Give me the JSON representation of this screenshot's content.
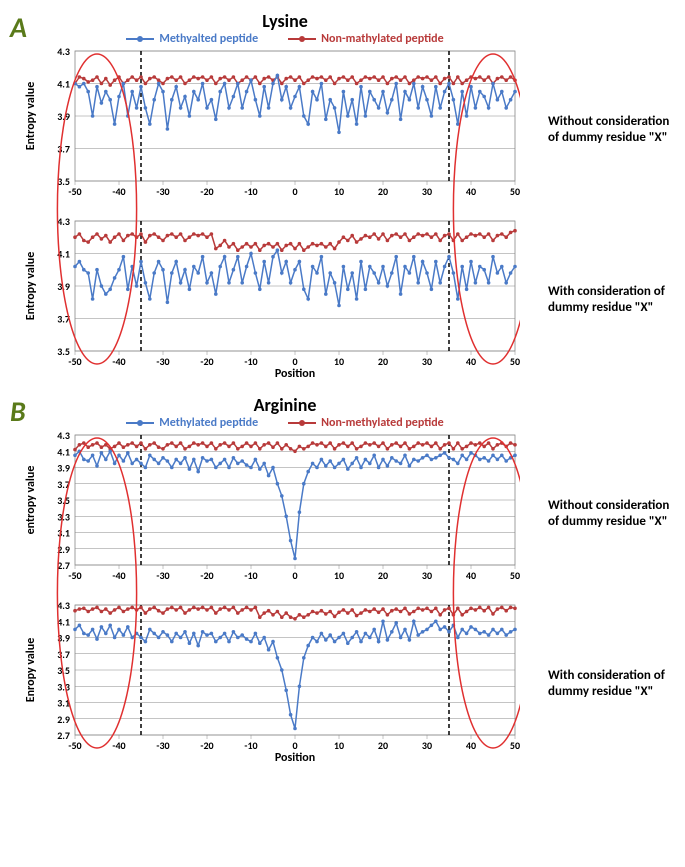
{
  "colors": {
    "methyl": "#4a7ac7",
    "nonmethyl": "#b83a3a",
    "panel_label": "#5a7a1a",
    "grid": "#888888",
    "text": "#000000",
    "ellipse": "#e03030",
    "dash": "#000000",
    "bg": "#ffffff"
  },
  "global": {
    "x_min": -50,
    "x_max": 50,
    "x_tick_step": 10,
    "x_label": "Position",
    "legend_methyl": "Methyalted peptide",
    "legend_nonmethyl": "Non-mathylated peptide",
    "legend_methyl_b": "Methylated peptide",
    "legend_nonmethyl_b": "Non-methylated peptide",
    "dash_positions": [
      -35,
      35
    ],
    "ellipse_centers": [
      -45,
      45
    ],
    "ellipse_rx": 9
  },
  "panels": [
    {
      "id": "A",
      "title": "Lysine",
      "y_min": 3.5,
      "y_max": 4.3,
      "y_tick_step": 0.2,
      "charts": [
        {
          "side_label": "Without consideration of dummy residue \"X\"",
          "y_axis_label": "Entropy value",
          "methyl": [
            4.1,
            4.08,
            4.1,
            4.05,
            3.9,
            4.08,
            3.98,
            4.05,
            4.0,
            3.85,
            4.02,
            4.1,
            3.9,
            4.05,
            3.95,
            4.08,
            3.95,
            3.85,
            4.0,
            4.1,
            4.05,
            3.82,
            4.0,
            4.08,
            3.95,
            4.02,
            3.9,
            4.05,
            4.0,
            4.1,
            3.95,
            4.0,
            3.88,
            4.05,
            4.1,
            3.95,
            4.02,
            4.1,
            3.95,
            4.05,
            4.12,
            4.0,
            3.9,
            4.08,
            3.95,
            4.1,
            4.15,
            4.0,
            4.08,
            3.95,
            4.02,
            4.08,
            3.9,
            3.85,
            4.05,
            4.0,
            4.1,
            3.88,
            4.0,
            3.95,
            3.8,
            4.05,
            3.9,
            4.0,
            3.85,
            4.08,
            3.9,
            4.05,
            4.0,
            3.95,
            4.05,
            3.92,
            4.0,
            4.1,
            3.88,
            4.05,
            4.0,
            4.1,
            3.95,
            4.08,
            4.0,
            3.9,
            4.08,
            3.95,
            4.05,
            4.1,
            4.0,
            3.85,
            4.05,
            3.9,
            4.08,
            3.95,
            4.05,
            4.02,
            3.95,
            4.1,
            4.0,
            4.05,
            3.95,
            4.0,
            4.05
          ],
          "nonmethyl": [
            4.1,
            4.14,
            4.13,
            4.11,
            4.12,
            4.14,
            4.1,
            4.13,
            4.09,
            4.12,
            4.14,
            4.1,
            4.12,
            4.14,
            4.12,
            4.14,
            4.1,
            4.13,
            4.14,
            4.12,
            4.1,
            4.13,
            4.14,
            4.12,
            4.14,
            4.1,
            4.12,
            4.14,
            4.13,
            4.14,
            4.12,
            4.14,
            4.1,
            4.13,
            4.14,
            4.12,
            4.14,
            4.1,
            4.12,
            4.14,
            4.12,
            4.14,
            4.1,
            4.13,
            4.14,
            4.12,
            4.14,
            4.1,
            4.13,
            4.14,
            4.12,
            4.14,
            4.1,
            4.12,
            4.14,
            4.13,
            4.14,
            4.12,
            4.14,
            4.1,
            4.13,
            4.14,
            4.12,
            4.14,
            4.1,
            4.12,
            4.14,
            4.13,
            4.14,
            4.12,
            4.14,
            4.1,
            4.13,
            4.14,
            4.12,
            4.14,
            4.1,
            4.12,
            4.14,
            4.13,
            4.14,
            4.12,
            4.14,
            4.1,
            4.13,
            4.14,
            4.1,
            4.14,
            4.1,
            4.12,
            4.14,
            4.13,
            4.14,
            4.12,
            4.14,
            4.1,
            4.13,
            4.14,
            4.12,
            4.14,
            4.12
          ]
        },
        {
          "side_label": "With consideration of dummy residue \"X\"",
          "y_axis_label": "Entropy value",
          "methyl": [
            4.02,
            4.05,
            4.0,
            3.98,
            3.82,
            4.0,
            3.9,
            3.85,
            3.88,
            3.95,
            4.0,
            4.08,
            3.88,
            4.02,
            3.9,
            4.05,
            3.92,
            3.82,
            3.98,
            4.05,
            4.0,
            3.8,
            3.98,
            4.05,
            3.92,
            4.0,
            3.88,
            4.02,
            3.98,
            4.08,
            3.92,
            3.98,
            3.85,
            4.02,
            4.08,
            3.92,
            4.0,
            4.08,
            3.92,
            4.02,
            4.1,
            3.98,
            3.88,
            4.05,
            3.92,
            4.08,
            4.12,
            3.98,
            4.05,
            3.92,
            4.0,
            4.05,
            3.88,
            3.82,
            4.02,
            3.98,
            4.08,
            3.85,
            3.98,
            3.92,
            3.78,
            4.02,
            3.88,
            3.98,
            3.82,
            4.05,
            3.88,
            4.02,
            3.98,
            3.92,
            4.02,
            3.9,
            3.98,
            4.08,
            3.85,
            4.02,
            3.98,
            4.08,
            3.92,
            4.05,
            3.98,
            3.88,
            4.05,
            3.92,
            4.02,
            4.08,
            3.98,
            3.82,
            4.02,
            3.88,
            4.05,
            3.92,
            4.02,
            4.0,
            3.92,
            4.08,
            3.98,
            4.02,
            3.92,
            3.98,
            4.02
          ],
          "nonmethyl": [
            4.2,
            4.22,
            4.18,
            4.17,
            4.2,
            4.22,
            4.19,
            4.21,
            4.17,
            4.2,
            4.22,
            4.18,
            4.21,
            4.22,
            4.2,
            4.22,
            4.17,
            4.21,
            4.22,
            4.2,
            4.18,
            4.21,
            4.22,
            4.2,
            4.22,
            4.18,
            4.2,
            4.22,
            4.21,
            4.22,
            4.2,
            4.22,
            4.13,
            4.15,
            4.18,
            4.14,
            4.16,
            4.12,
            4.14,
            4.16,
            4.14,
            4.16,
            4.12,
            4.15,
            4.16,
            4.14,
            4.16,
            4.12,
            4.15,
            4.16,
            4.13,
            4.16,
            4.12,
            4.14,
            4.16,
            4.15,
            4.16,
            4.14,
            4.16,
            4.13,
            4.17,
            4.2,
            4.18,
            4.21,
            4.17,
            4.19,
            4.21,
            4.2,
            4.22,
            4.19,
            4.22,
            4.18,
            4.21,
            4.22,
            4.2,
            4.22,
            4.18,
            4.2,
            4.22,
            4.21,
            4.22,
            4.2,
            4.22,
            4.18,
            4.21,
            4.22,
            4.18,
            4.22,
            4.18,
            4.2,
            4.22,
            4.21,
            4.22,
            4.2,
            4.22,
            4.18,
            4.21,
            4.22,
            4.2,
            4.23,
            4.24
          ]
        }
      ]
    },
    {
      "id": "B",
      "title": "Arginine",
      "y_min": 2.7,
      "y_max": 4.3,
      "y_tick_step": 0.2,
      "charts": [
        {
          "side_label": "Without consideration of dummy residue \"X\"",
          "y_axis_label": "entropy value",
          "methyl": [
            4.05,
            4.1,
            4.0,
            3.98,
            4.05,
            3.92,
            4.08,
            4.0,
            4.1,
            3.95,
            4.05,
            3.98,
            4.08,
            3.95,
            4.0,
            3.95,
            3.9,
            4.05,
            4.0,
            3.95,
            4.02,
            3.98,
            3.9,
            4.0,
            3.95,
            4.02,
            3.88,
            4.0,
            3.85,
            4.02,
            3.98,
            4.0,
            3.9,
            3.95,
            4.0,
            3.9,
            4.02,
            3.95,
            3.98,
            3.93,
            3.9,
            4.0,
            3.88,
            3.95,
            3.8,
            3.9,
            3.7,
            3.55,
            3.3,
            3.0,
            2.78,
            3.35,
            3.7,
            3.85,
            3.95,
            3.9,
            4.0,
            3.92,
            3.98,
            3.9,
            3.95,
            4.0,
            3.88,
            3.95,
            4.02,
            3.9,
            4.0,
            3.95,
            4.05,
            3.9,
            4.0,
            3.92,
            4.02,
            3.98,
            3.95,
            4.05,
            3.92,
            4.0,
            3.98,
            4.02,
            4.05,
            4.0,
            4.02,
            4.05,
            4.08,
            4.02,
            4.0,
            3.95,
            4.05,
            4.0,
            4.08,
            4.05,
            4.0,
            4.02,
            3.98,
            4.05,
            4.0,
            4.05,
            3.98,
            4.02,
            4.05
          ],
          "nonmethyl": [
            4.12,
            4.18,
            4.2,
            4.15,
            4.18,
            4.2,
            4.15,
            4.18,
            4.13,
            4.16,
            4.2,
            4.15,
            4.18,
            4.2,
            4.16,
            4.2,
            4.13,
            4.18,
            4.2,
            4.15,
            4.13,
            4.18,
            4.2,
            4.16,
            4.2,
            4.13,
            4.16,
            4.2,
            4.18,
            4.2,
            4.16,
            4.2,
            4.13,
            4.18,
            4.2,
            4.16,
            4.2,
            4.13,
            4.16,
            4.2,
            4.16,
            4.2,
            4.13,
            4.18,
            4.2,
            4.15,
            4.2,
            4.13,
            4.18,
            4.13,
            4.1,
            4.16,
            4.13,
            4.16,
            4.2,
            4.18,
            4.2,
            4.16,
            4.2,
            4.13,
            4.18,
            4.2,
            4.16,
            4.2,
            4.13,
            4.16,
            4.2,
            4.18,
            4.2,
            4.16,
            4.2,
            4.13,
            4.18,
            4.2,
            4.16,
            4.2,
            4.13,
            4.16,
            4.2,
            4.18,
            4.2,
            4.16,
            4.2,
            4.13,
            4.18,
            4.2,
            4.13,
            4.2,
            4.13,
            4.16,
            4.2,
            4.18,
            4.2,
            4.16,
            4.2,
            4.13,
            4.18,
            4.2,
            4.16,
            4.2,
            4.18
          ]
        },
        {
          "side_label": "With consideration of dummy residue \"X\"",
          "y_axis_label": "Enropy value",
          "methyl": [
            4.0,
            4.05,
            3.95,
            3.93,
            4.0,
            3.88,
            4.03,
            3.95,
            4.05,
            3.9,
            4.0,
            3.93,
            4.03,
            3.9,
            3.95,
            3.9,
            3.85,
            4.0,
            3.95,
            3.9,
            3.97,
            3.93,
            3.85,
            3.95,
            3.9,
            3.97,
            3.83,
            3.95,
            3.8,
            3.97,
            3.93,
            3.95,
            3.85,
            3.9,
            3.95,
            3.85,
            3.97,
            3.9,
            3.93,
            3.88,
            3.85,
            3.95,
            3.83,
            3.9,
            3.75,
            3.85,
            3.65,
            3.5,
            3.25,
            2.95,
            2.78,
            3.3,
            3.65,
            3.8,
            3.9,
            3.85,
            3.95,
            3.87,
            3.93,
            3.85,
            3.9,
            3.95,
            3.83,
            3.9,
            3.97,
            3.85,
            3.95,
            3.9,
            4.0,
            3.85,
            4.1,
            3.87,
            3.97,
            4.08,
            3.9,
            4.0,
            3.87,
            4.1,
            3.93,
            3.97,
            4.0,
            4.05,
            4.1,
            4.0,
            4.03,
            3.97,
            4.05,
            3.9,
            4.0,
            3.95,
            4.03,
            4.0,
            3.95,
            3.97,
            3.93,
            4.0,
            3.95,
            4.0,
            3.93,
            3.97,
            4.0
          ],
          "nonmethyl": [
            4.23,
            4.25,
            4.26,
            4.22,
            4.25,
            4.27,
            4.22,
            4.25,
            4.2,
            4.24,
            4.27,
            4.22,
            4.25,
            4.27,
            4.24,
            4.27,
            4.2,
            4.25,
            4.27,
            4.23,
            4.2,
            4.25,
            4.27,
            4.24,
            4.27,
            4.2,
            4.24,
            4.27,
            4.25,
            4.27,
            4.24,
            4.27,
            4.2,
            4.25,
            4.27,
            4.24,
            4.27,
            4.2,
            4.24,
            4.27,
            4.24,
            4.27,
            4.15,
            4.2,
            4.23,
            4.18,
            4.22,
            4.15,
            4.2,
            4.15,
            4.13,
            4.18,
            4.15,
            4.18,
            4.22,
            4.2,
            4.23,
            4.19,
            4.22,
            4.16,
            4.21,
            4.24,
            4.2,
            4.24,
            4.17,
            4.2,
            4.24,
            4.22,
            4.25,
            4.21,
            4.25,
            4.18,
            4.23,
            4.25,
            4.22,
            4.26,
            4.19,
            4.22,
            4.26,
            4.24,
            4.26,
            4.22,
            4.26,
            4.18,
            4.24,
            4.26,
            4.18,
            4.26,
            4.18,
            4.22,
            4.26,
            4.24,
            4.27,
            4.23,
            4.27,
            4.19,
            4.25,
            4.27,
            4.23,
            4.27,
            4.26
          ]
        }
      ]
    }
  ]
}
